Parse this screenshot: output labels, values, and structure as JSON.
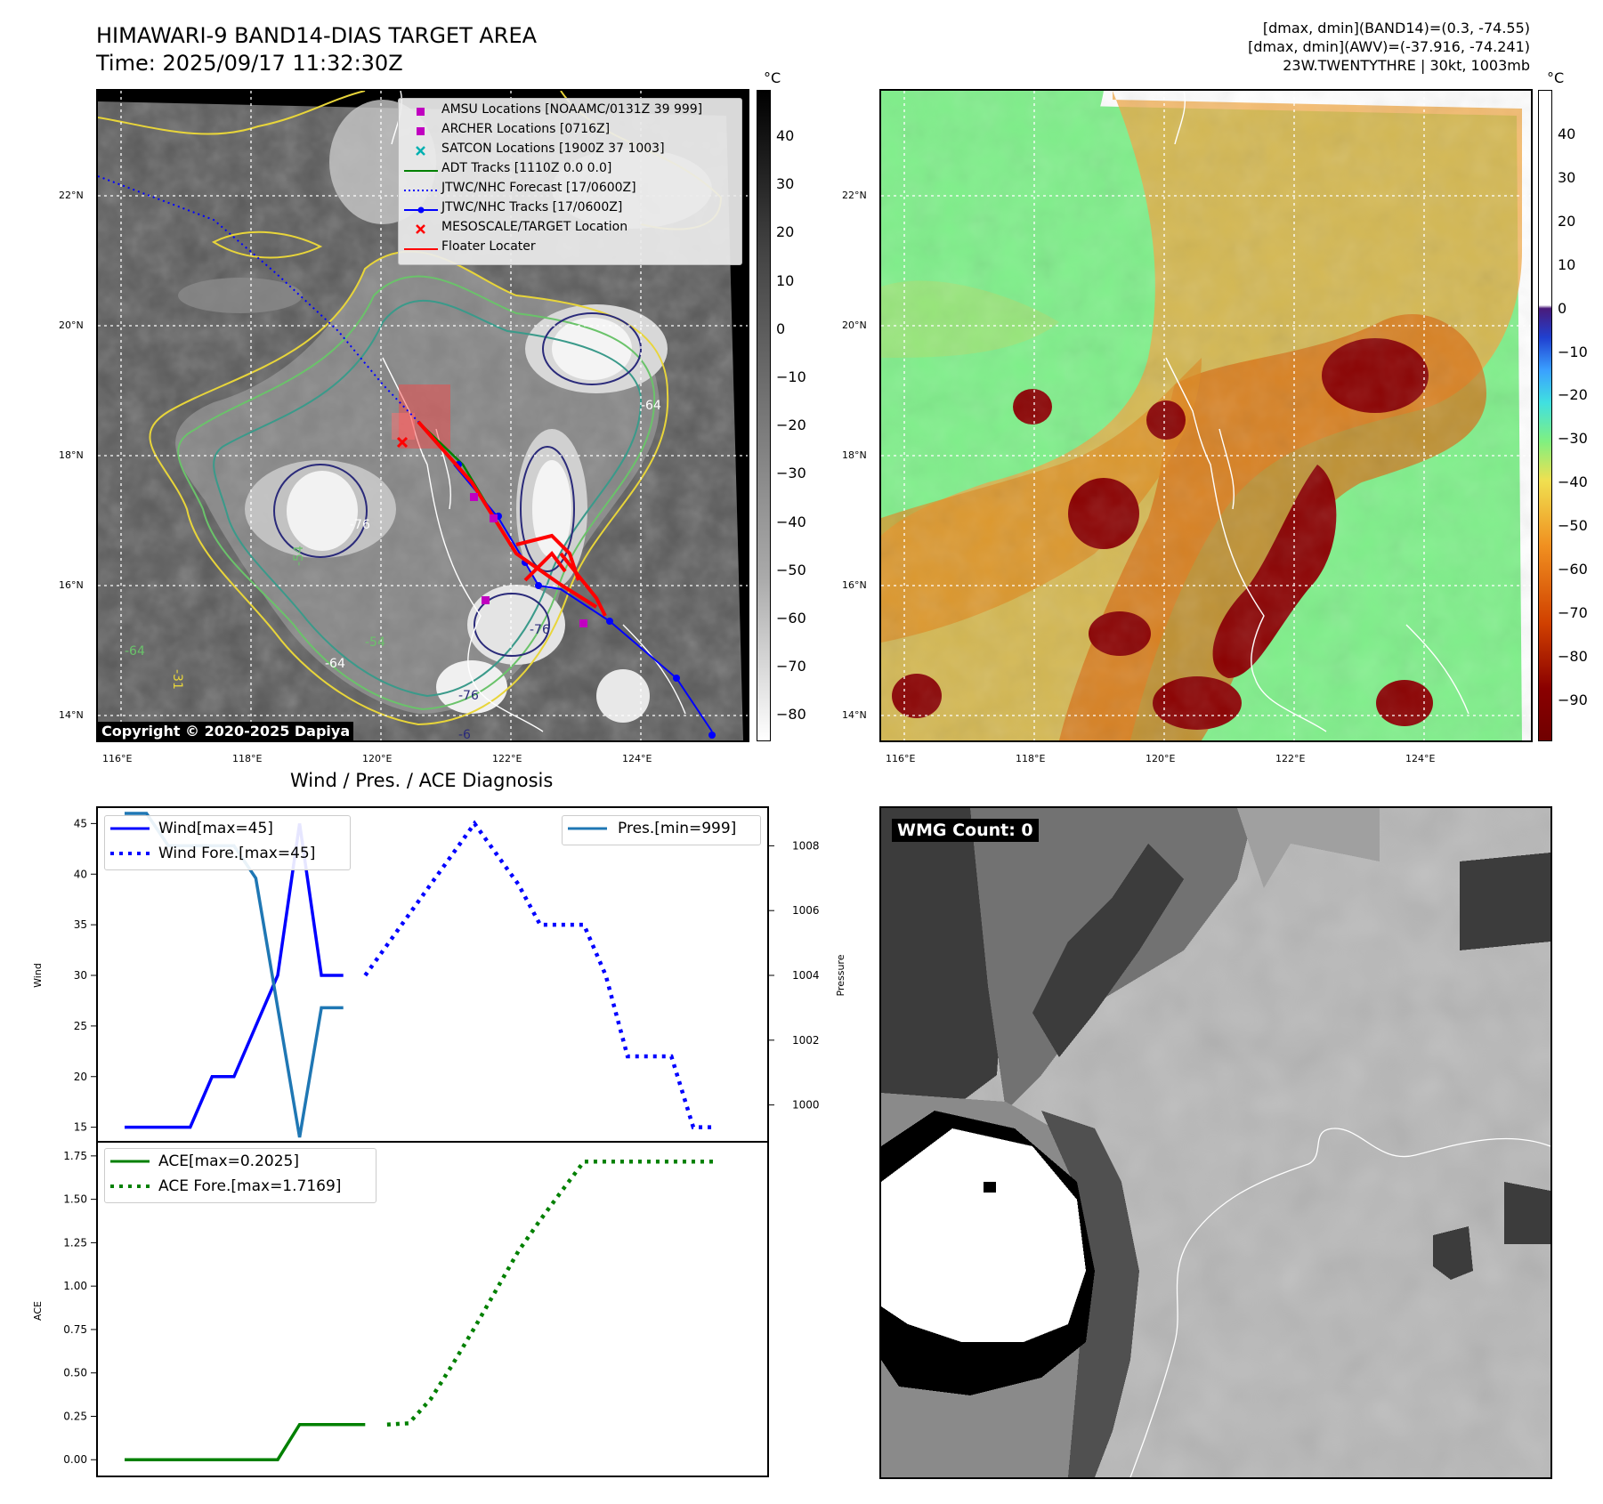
{
  "header": {
    "title_line1": "HIMAWARI-9 BAND14-DIAS TARGET AREA",
    "title_line2": "Time: 2025/09/17 11:32:30Z",
    "info_line1": "[dmax, dmin](BAND14)=(0.3, -74.55)",
    "info_line2": "[dmax, dmin](AWV)=(-37.916, -74.241)",
    "info_line3": "23W.TWENTYTHRE | 30kt, 1003mb"
  },
  "map_axes": {
    "lat_labels": [
      "22°N",
      "20°N",
      "18°N",
      "16°N",
      "14°N"
    ],
    "lon_labels": [
      "116°E",
      "118°E",
      "120°E",
      "122°E",
      "124°E"
    ]
  },
  "ir_panel": {
    "copyright": "Copyright © 2020-2025 Dapiya",
    "colorbar_unit": "°C",
    "colorbar_ticks": [
      "40",
      "30",
      "20",
      "10",
      "0",
      "−10",
      "−20",
      "−30",
      "−40",
      "−50",
      "−60",
      "−70",
      "−80"
    ],
    "contour_labels": [
      "-64",
      "-76",
      "-54",
      "-76",
      "-64",
      "-54",
      "-31",
      "-76",
      "-64",
      "-6"
    ],
    "legend": [
      {
        "label": "AMSU Locations [NOAAMC/0131Z 39 999]",
        "symbol": "square",
        "color": "#c000c0"
      },
      {
        "label": "ARCHER Locations [0716Z]",
        "symbol": "square",
        "color": "#c000c0"
      },
      {
        "label": "SATCON Locations [1900Z 37 1003]",
        "symbol": "x",
        "color": "#00b0b0"
      },
      {
        "label": "ADT Tracks [1110Z 0.0 0.0]",
        "symbol": "line",
        "color": "#008000"
      },
      {
        "label": "JTWC/NHC Forecast [17/0600Z]",
        "symbol": "dotted",
        "color": "#0000ff"
      },
      {
        "label": "JTWC/NHC Tracks [17/0600Z]",
        "symbol": "line-dot",
        "color": "#0000ff"
      },
      {
        "label": "MESOSCALE/TARGET Location",
        "symbol": "x",
        "color": "#ff0000"
      },
      {
        "label": "Floater Locater",
        "symbol": "line",
        "color": "#ff0000"
      }
    ]
  },
  "awv_panel": {
    "colorbar_unit": "°C",
    "colorbar_ticks": [
      "40",
      "30",
      "20",
      "10",
      "0",
      "−10",
      "−20",
      "−30",
      "−40",
      "−50",
      "−60",
      "−70",
      "−80",
      "−90"
    ]
  },
  "wmg_panel": {
    "label": "WMG Count: 0"
  },
  "diagnosis": {
    "title": "Wind / Pres. / ACE Diagnosis"
  },
  "chart_data": [
    {
      "type": "line",
      "title": "Wind / Pres. / ACE Diagnosis",
      "ylabel": "Wind",
      "ylim": [
        14,
        46
      ],
      "yticks": [
        15,
        20,
        25,
        30,
        35,
        40,
        45
      ],
      "x_index_range": [
        0,
        28
      ],
      "series": [
        {
          "name": "Wind[max=45]",
          "style": "solid",
          "color": "#0000ff",
          "x": [
            0,
            1,
            2,
            3,
            4,
            5,
            6,
            7,
            8,
            9,
            10,
            11
          ],
          "values": [
            15,
            15,
            15,
            15,
            20,
            20,
            25,
            30,
            45,
            30,
            30,
            null
          ]
        },
        {
          "name": "Wind Fore.[max=45]",
          "style": "dotted",
          "color": "#0000ff",
          "x": [
            11,
            12,
            13,
            14,
            15,
            16,
            17,
            18,
            19,
            20,
            21,
            22,
            23,
            24,
            25,
            26,
            27
          ],
          "values": [
            30,
            33,
            36,
            39,
            42,
            45,
            42,
            39,
            35,
            35,
            35,
            30,
            22,
            22,
            22,
            15,
            15
          ]
        }
      ]
    },
    {
      "type": "line",
      "ylabel": "Pressure",
      "ylim": [
        999,
        1009
      ],
      "yticks": [
        1000,
        1002,
        1004,
        1006,
        1008
      ],
      "series": [
        {
          "name": "Pres.[min=999]",
          "style": "solid",
          "color": "#1f77b4",
          "x": [
            0,
            1,
            2,
            3,
            4,
            5,
            6,
            7,
            8,
            9,
            10
          ],
          "values": [
            1009,
            1009,
            1008,
            1008,
            1008,
            1008,
            1007,
            1003,
            999,
            1003,
            1003
          ]
        }
      ]
    },
    {
      "type": "line",
      "ylabel": "ACE",
      "ylim": [
        -0.05,
        1.78
      ],
      "yticks": [
        "0.00",
        "0.25",
        "0.50",
        "0.75",
        "1.00",
        "1.25",
        "1.50",
        "1.75"
      ],
      "series": [
        {
          "name": "ACE[max=0.2025]",
          "style": "solid",
          "color": "#008000",
          "x": [
            0,
            1,
            2,
            3,
            4,
            5,
            6,
            7,
            8,
            9,
            10,
            11
          ],
          "values": [
            0,
            0,
            0,
            0,
            0,
            0,
            0,
            0,
            0.2025,
            0.2025,
            0.2025,
            0.2025
          ]
        },
        {
          "name": "ACE Fore.[max=1.7169]",
          "style": "dotted",
          "color": "#008000",
          "x": [
            12,
            13,
            14,
            15,
            16,
            17,
            18,
            19,
            20,
            21,
            22,
            23,
            24,
            25,
            26,
            27
          ],
          "values": [
            0.2025,
            0.21,
            0.35,
            0.55,
            0.76,
            0.98,
            1.2,
            1.38,
            1.55,
            1.7169,
            1.7169,
            1.7169,
            1.7169,
            1.7169,
            1.7169,
            1.7169
          ]
        }
      ]
    }
  ]
}
